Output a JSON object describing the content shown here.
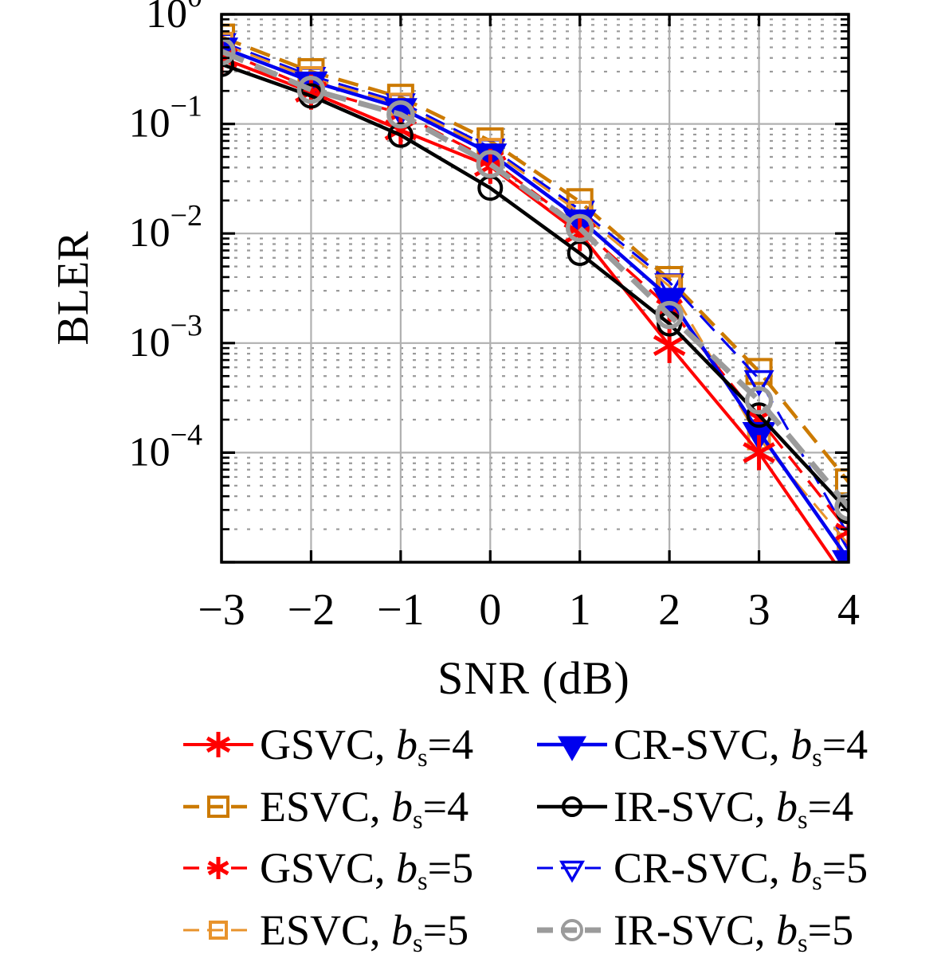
{
  "figure": {
    "xlabel": "SNR (dB)",
    "ylabel": "BLER",
    "frame_color": "#000000",
    "grid_major_color": "#b0b0b0",
    "grid_minor_color": "#9a9a9a",
    "background": "#ffffff"
  },
  "chart_data": {
    "type": "line",
    "title": "",
    "xlabel": "SNR (dB)",
    "ylabel": "BLER",
    "x": [
      -3,
      -2,
      -1,
      0,
      1,
      2,
      3,
      4
    ],
    "x_tick_labels": [
      "−3",
      "−2",
      "−1",
      "0",
      "1",
      "2",
      "3",
      "4"
    ],
    "y_scale": "log",
    "y_tick_base": "10",
    "y_tick_exponents": [
      "0",
      "−1",
      "−2",
      "−3",
      "−4"
    ],
    "ylim": [
      1e-05,
      1
    ],
    "xlim": [
      -3,
      4
    ],
    "grid": "major-solid + minor-dotted",
    "legend_position": "below-two-columns",
    "legend": {
      "separator": ", ",
      "var_label": "b",
      "sub_label": "s",
      "equals": "="
    },
    "series": [
      {
        "id": "gsvc-bs4",
        "scheme_label": "GSVC",
        "bs_value": "4",
        "color": "#ff0000",
        "line_style": "solid",
        "line_width": 4,
        "marker": "asterisk",
        "marker_filled": true,
        "marker_size": 22,
        "values": [
          0.4,
          0.195,
          0.088,
          0.041,
          0.01,
          0.00095,
          0.0001,
          6.5e-06
        ]
      },
      {
        "id": "cr-svc-bs4",
        "scheme_label": "CR-SVC",
        "bs_value": "4",
        "color": "#0000ee",
        "line_style": "solid",
        "line_width": 4.5,
        "marker": "triangle-down",
        "marker_filled": true,
        "marker_size": 36,
        "values": [
          0.5,
          0.245,
          0.14,
          0.054,
          0.0135,
          0.0026,
          0.000155,
          1.05e-05
        ]
      },
      {
        "id": "esvc-bs4",
        "scheme_label": "ESVC",
        "bs_value": "4",
        "color": "#cc7a00",
        "line_style": "dashed",
        "line_width": 4.5,
        "marker": "square",
        "marker_filled": false,
        "marker_size": 30,
        "values": [
          0.62,
          0.3,
          0.175,
          0.07,
          0.0195,
          0.0038,
          0.00055,
          5.4e-05
        ]
      },
      {
        "id": "ir-svc-bs4",
        "scheme_label": "IR-SVC",
        "bs_value": "4",
        "color": "#000000",
        "line_style": "solid",
        "line_width": 4.5,
        "marker": "circle",
        "marker_filled": false,
        "marker_size": 28,
        "values": [
          0.35,
          0.18,
          0.079,
          0.026,
          0.0066,
          0.0015,
          0.00022,
          2.9e-05
        ]
      },
      {
        "id": "gsvc-bs5",
        "scheme_label": "GSVC",
        "bs_value": "5",
        "color": "#ff0000",
        "line_style": "dashed",
        "line_width": 3.5,
        "marker": "asterisk",
        "marker_filled": true,
        "marker_size": 18,
        "values": [
          0.47,
          0.21,
          0.125,
          0.047,
          0.0115,
          0.0021,
          0.000205,
          1.9e-05
        ]
      },
      {
        "id": "cr-svc-bs5",
        "scheme_label": "CR-SVC",
        "bs_value": "5",
        "color": "#0000ee",
        "line_style": "dashed",
        "line_width": 3,
        "marker": "triangle-down",
        "marker_filled": false,
        "marker_size": 32,
        "values": [
          0.56,
          0.275,
          0.158,
          0.061,
          0.0165,
          0.0036,
          0.00047,
          1.75e-05
        ]
      },
      {
        "id": "esvc-bs5",
        "scheme_label": "ESVC",
        "bs_value": "5",
        "color": "#e8932c",
        "line_style": "dashed",
        "line_width": 3,
        "marker": "square",
        "marker_filled": false,
        "marker_size": 26,
        "values": [
          0.54,
          0.262,
          0.15,
          0.058,
          0.0155,
          0.0033,
          0.000135,
          1.45e-05
        ]
      },
      {
        "id": "ir-svc-bs5",
        "scheme_label": "IR-SVC",
        "bs_value": "5",
        "color": "#9b9b9b",
        "line_style": "dashed",
        "line_width": 7,
        "marker": "circle",
        "marker_filled": false,
        "marker_size": 30,
        "values": [
          0.46,
          0.205,
          0.122,
          0.043,
          0.0112,
          0.0018,
          0.0003,
          3.2e-05
        ]
      }
    ]
  }
}
